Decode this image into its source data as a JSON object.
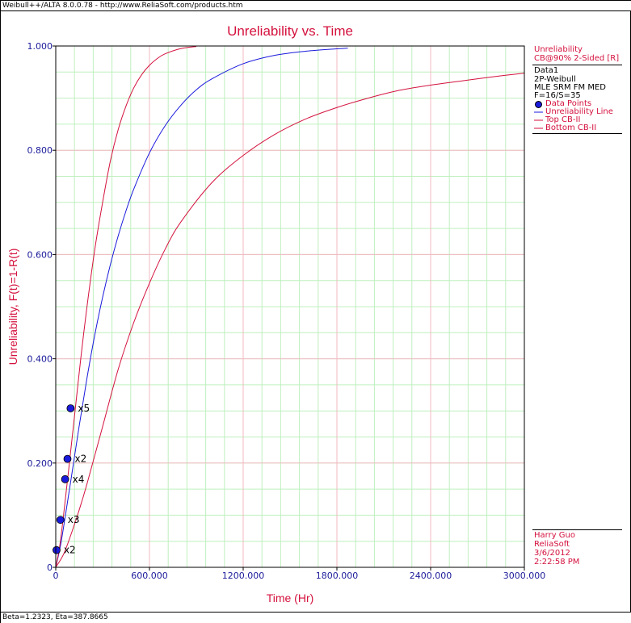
{
  "window": {
    "title": "Weibull++/ALTA 8.0.0.78 - http://www.ReliaSoft.com/products.htm",
    "status": "Beta=1.2323, Eta=387.8665"
  },
  "legend": {
    "header_line1": "Unreliability",
    "header_line2": "CB@90% 2-Sided [R]",
    "data_name": "Data1",
    "dist": "2P-Weibull",
    "method": "MLE SRM FM MED",
    "counts": "F=16/S=35",
    "items": [
      {
        "label": "Data Points",
        "color": "#1a1adc"
      },
      {
        "label": "Unreliability Line",
        "color": "#1a1adc"
      },
      {
        "label": "Top CB-II",
        "color": "#d4113d"
      },
      {
        "label": "Bottom CB-II",
        "color": "#d4113d"
      }
    ]
  },
  "footer": {
    "user": "Harry Guo",
    "company": "ReliaSoft",
    "date": "3/6/2012",
    "time": "2:22:58 PM"
  },
  "colors": {
    "title": "#d4113d",
    "axis_label": "#d4113d",
    "tick": "#1a1a9a",
    "major_grid": "#f3b8c2",
    "minor_grid": "#bff0bf",
    "unreliability_line": "#1a1adc",
    "confidence_bounds": "#d4113d",
    "data_point": "#1a1adc"
  },
  "chart_data": {
    "type": "line",
    "title": "Unreliability vs. Time",
    "xlabel": "Time (Hr)",
    "ylabel": "Unreliability, F(t)=1-R(t)",
    "xlim": [
      0,
      3000
    ],
    "ylim": [
      0,
      1
    ],
    "xticks": [
      0,
      600,
      1200,
      1800,
      2400,
      3000
    ],
    "xtick_labels": [
      "0",
      "600.000",
      "1200.000",
      "1800.000",
      "2400.000",
      "3000.000"
    ],
    "yticks": [
      0,
      0.2,
      0.4,
      0.6,
      0.8,
      1.0
    ],
    "ytick_labels": [
      "0",
      "0.200",
      "0.400",
      "0.600",
      "0.800",
      "1.000"
    ],
    "grid": true,
    "legend_position": "right",
    "weibull": {
      "beta": 1.2323,
      "eta": 387.8665
    },
    "series": [
      {
        "name": "Unreliability Line",
        "color": "#1a1adc",
        "x": [
          0,
          30,
          60,
          100,
          150,
          200,
          250,
          300,
          350,
          400,
          450,
          500,
          600,
          700,
          800,
          900,
          1000,
          1200,
          1400,
          1600,
          1870
        ],
        "y": [
          0,
          0.041,
          0.096,
          0.173,
          0.271,
          0.363,
          0.446,
          0.518,
          0.581,
          0.636,
          0.684,
          0.726,
          0.795,
          0.847,
          0.886,
          0.916,
          0.937,
          0.966,
          0.982,
          0.99,
          0.996
        ]
      },
      {
        "name": "Top CB-II",
        "color": "#d4113d",
        "x": [
          0,
          25,
          50,
          80,
          120,
          160,
          200,
          250,
          300,
          350,
          400,
          450,
          500,
          550,
          600,
          650,
          700,
          800,
          900
        ],
        "y": [
          0,
          0.04,
          0.1,
          0.18,
          0.29,
          0.4,
          0.5,
          0.61,
          0.7,
          0.78,
          0.84,
          0.885,
          0.92,
          0.945,
          0.963,
          0.976,
          0.985,
          0.995,
          0.999
        ]
      },
      {
        "name": "Bottom CB-II",
        "color": "#d4113d",
        "x": [
          0,
          50,
          100,
          150,
          200,
          300,
          400,
          500,
          600,
          700,
          800,
          1000,
          1200,
          1400,
          1600,
          1800,
          2000,
          2200,
          2400,
          2600,
          2800,
          3000
        ],
        "y": [
          0,
          0.025,
          0.065,
          0.11,
          0.16,
          0.27,
          0.38,
          0.47,
          0.545,
          0.61,
          0.662,
          0.738,
          0.79,
          0.83,
          0.86,
          0.882,
          0.9,
          0.915,
          0.925,
          0.933,
          0.941,
          0.948
        ]
      }
    ],
    "points": [
      {
        "x": 5,
        "y": 0.033,
        "label": "x2"
      },
      {
        "x": 30,
        "y": 0.091,
        "label": "x3"
      },
      {
        "x": 60,
        "y": 0.169,
        "label": "x4"
      },
      {
        "x": 75,
        "y": 0.208,
        "label": "x2"
      },
      {
        "x": 95,
        "y": 0.305,
        "label": "x5"
      }
    ]
  }
}
